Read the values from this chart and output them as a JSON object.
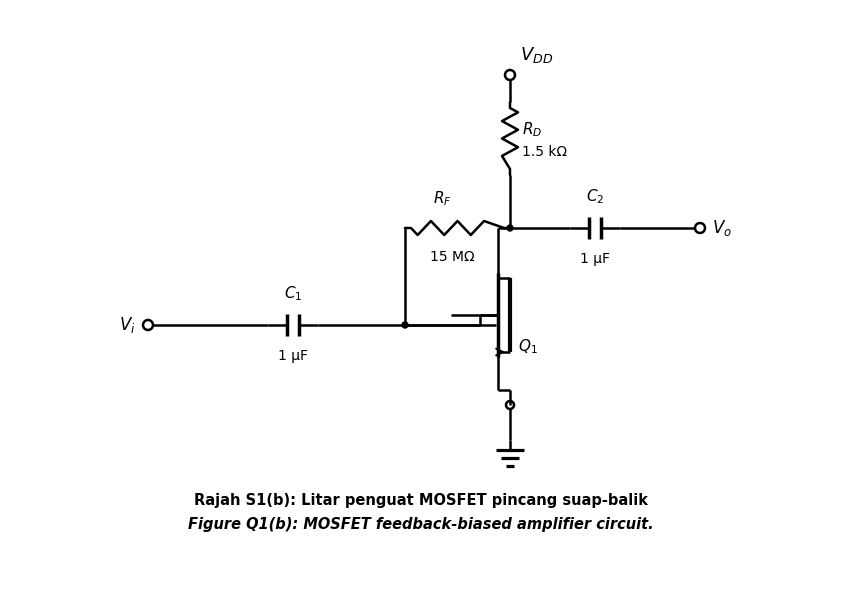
{
  "bg_color": "#ffffff",
  "line_color": "#000000",
  "title1": "Rajah S1(b): Litar penguat MOSFET pincang suap-balik",
  "title2": "Figure Q1(b): MOSFET feedback-biased amplifier circuit.",
  "RD_label": "$R_D$",
  "RD_value": "1.5 kΩ",
  "RF_label": "$R_F$",
  "RF_value": "15 MΩ",
  "C1_label": "$C_1$",
  "C1_value": "1 μF",
  "C2_label": "$C_2$",
  "C2_value": "1 μF",
  "VDD_label": "$V_{DD}$",
  "Vi_label": "$V_i$",
  "Vo_label": "$V_o$",
  "Q1_label": "$Q_1$",
  "figsize": [
    8.43,
    5.98
  ],
  "dpi": 100,
  "lw": 1.8
}
